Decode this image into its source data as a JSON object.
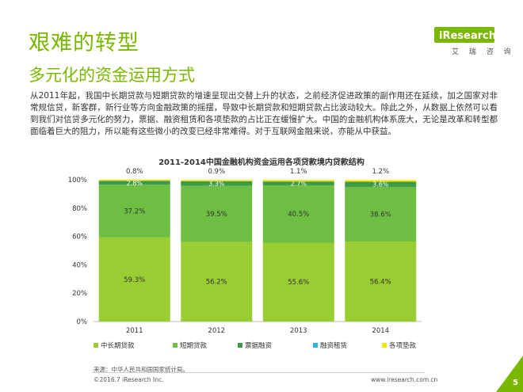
{
  "header": {
    "title": "艰难的转型",
    "subtitle": "多元化的资金运用方式"
  },
  "logo": {
    "wordmark": "iResearch",
    "tagline": "艾 瑞 咨 询",
    "color": "#7ab800"
  },
  "body_text": "从2011年起，我国中长期贷款与短期贷款的增速呈现出交替上升的状态，之前经济促进政策的副作用还在延续，加之国家对非常规信贷，新客群，新行业等方向金融政策的摇摆，导致中长期贷款和短期贷款占比波动较大。除此之外，从数据上依然可以看到我们对信贷多元化的努力，票据、融资租赁和各项垫款的占比正在缓慢扩大。中国的金融机构体系庞大，无论是改革和转型都面临着巨大的阻力，所以能有这些微小的改变已经非常难得。对于互联网金融来说，亦能从中获益。",
  "chart_data": {
    "type": "bar",
    "stacked": true,
    "title": "2011-2014中国金融机构资金运用各项贷款境内贷款结构",
    "categories": [
      "2011",
      "2012",
      "2013",
      "2014"
    ],
    "series": [
      {
        "name": "中长期贷款",
        "color": "#9acd32",
        "values": [
          59.3,
          56.2,
          55.6,
          56.4
        ],
        "labels": [
          "59.3%",
          "56.2%",
          "55.6%",
          "56.4%"
        ]
      },
      {
        "name": "短期贷款",
        "color": "#6fbe44",
        "values": [
          37.2,
          39.5,
          40.5,
          38.6
        ],
        "labels": [
          "37.2%",
          "39.5%",
          "40.5%",
          "38.6%"
        ]
      },
      {
        "name": "票据融资",
        "color": "#3d9a47",
        "values": [
          2.8,
          3.3,
          2.7,
          3.6
        ],
        "labels": [
          "2.8%",
          "3.3%",
          "2.7%",
          "3.6%"
        ]
      },
      {
        "name": "融资租赁",
        "color": "#29b6e8",
        "values": [
          0.0,
          0.0,
          0.0,
          0.0
        ],
        "labels": []
      },
      {
        "name": "各项垫款",
        "color": "#f2e600",
        "values": [
          0.8,
          0.9,
          1.1,
          1.2
        ],
        "labels": [
          "0.8%",
          "0.9%",
          "1.1%",
          "1.2%"
        ]
      }
    ],
    "ylim": [
      0,
      100
    ],
    "yticks": [
      0,
      20,
      40,
      60,
      80,
      100
    ],
    "ytick_labels": [
      "0%",
      "20%",
      "40%",
      "60%",
      "80%",
      "100%"
    ],
    "legend_position": "bottom",
    "grid": false
  },
  "footer": {
    "source": "来源：中华人民共和国国家统计局。",
    "copyright": "©2016.7 iResearch Inc.",
    "website": "www.iresearch.com.cn",
    "page_number": "5"
  }
}
